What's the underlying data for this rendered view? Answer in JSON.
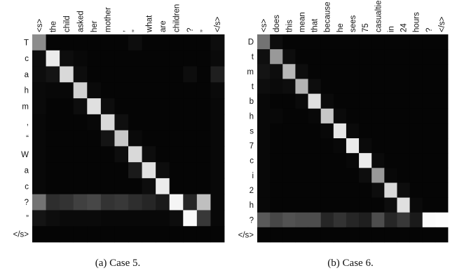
{
  "chart_data": [
    {
      "type": "heatmap",
      "caption": "(a) Case 5.",
      "x_labels": [
        "<s>",
        "the",
        "child",
        "asked",
        "her",
        "mother",
        ",",
        "”",
        "what",
        "are",
        "children",
        "?",
        "”",
        "</s>"
      ],
      "y_labels": [
        "T",
        "c",
        "a",
        "h",
        "m",
        ",",
        "“",
        "W",
        "a",
        "c",
        "?",
        "”",
        "</s>"
      ],
      "value_range": [
        0,
        1
      ],
      "values": [
        [
          0.55,
          0.02,
          0.02,
          0.02,
          0.02,
          0.02,
          0.02,
          0.05,
          0.02,
          0.02,
          0.02,
          0.02,
          0.02,
          0.05
        ],
        [
          0.05,
          0.92,
          0.05,
          0.03,
          0.02,
          0.02,
          0.02,
          0.02,
          0.02,
          0.02,
          0.02,
          0.02,
          0.02,
          0.04
        ],
        [
          0.05,
          0.08,
          0.85,
          0.05,
          0.02,
          0.02,
          0.02,
          0.02,
          0.02,
          0.02,
          0.02,
          0.05,
          0.02,
          0.12
        ],
        [
          0.04,
          0.03,
          0.03,
          0.82,
          0.04,
          0.02,
          0.02,
          0.02,
          0.02,
          0.02,
          0.02,
          0.02,
          0.02,
          0.04
        ],
        [
          0.04,
          0.02,
          0.02,
          0.05,
          0.88,
          0.05,
          0.02,
          0.02,
          0.02,
          0.02,
          0.02,
          0.02,
          0.02,
          0.03
        ],
        [
          0.03,
          0.02,
          0.02,
          0.02,
          0.03,
          0.85,
          0.06,
          0.02,
          0.02,
          0.02,
          0.02,
          0.02,
          0.02,
          0.03
        ],
        [
          0.03,
          0.02,
          0.02,
          0.02,
          0.02,
          0.08,
          0.78,
          0.04,
          0.02,
          0.02,
          0.02,
          0.02,
          0.02,
          0.03
        ],
        [
          0.03,
          0.02,
          0.02,
          0.02,
          0.02,
          0.02,
          0.05,
          0.85,
          0.05,
          0.02,
          0.02,
          0.02,
          0.02,
          0.03
        ],
        [
          0.03,
          0.02,
          0.02,
          0.02,
          0.02,
          0.02,
          0.02,
          0.1,
          0.88,
          0.05,
          0.02,
          0.02,
          0.02,
          0.03
        ],
        [
          0.03,
          0.02,
          0.02,
          0.02,
          0.02,
          0.02,
          0.02,
          0.02,
          0.05,
          0.92,
          0.02,
          0.02,
          0.02,
          0.03
        ],
        [
          0.45,
          0.18,
          0.2,
          0.25,
          0.28,
          0.2,
          0.22,
          0.18,
          0.15,
          0.1,
          0.96,
          0.15,
          0.75,
          0.03
        ],
        [
          0.08,
          0.05,
          0.04,
          0.04,
          0.04,
          0.03,
          0.03,
          0.03,
          0.03,
          0.03,
          0.05,
          0.98,
          0.22,
          0.03
        ],
        [
          0.02,
          0.02,
          0.02,
          0.02,
          0.02,
          0.02,
          0.02,
          0.02,
          0.02,
          0.02,
          0.02,
          0.02,
          0.02,
          0.02
        ]
      ]
    },
    {
      "type": "heatmap",
      "caption": "(b) Case 6.",
      "x_labels": [
        "<s>",
        "does",
        "this",
        "mean",
        "that",
        "because",
        "he",
        "sees",
        "75",
        "casualties",
        "in",
        "24",
        "hours",
        "?",
        "</s>"
      ],
      "y_labels": [
        "D",
        "t",
        "m",
        "t",
        "b",
        "h",
        "s",
        "7",
        "c",
        "i",
        "2",
        "h",
        "?",
        "</s>"
      ],
      "value_range": [
        0,
        1
      ],
      "values": [
        [
          0.45,
          0.05,
          0.02,
          0.02,
          0.02,
          0.02,
          0.02,
          0.02,
          0.02,
          0.02,
          0.02,
          0.02,
          0.02,
          0.02,
          0.02
        ],
        [
          0.06,
          0.6,
          0.05,
          0.02,
          0.02,
          0.02,
          0.02,
          0.02,
          0.02,
          0.02,
          0.02,
          0.02,
          0.02,
          0.02,
          0.02
        ],
        [
          0.08,
          0.05,
          0.72,
          0.05,
          0.02,
          0.02,
          0.02,
          0.02,
          0.02,
          0.02,
          0.02,
          0.02,
          0.02,
          0.02,
          0.02
        ],
        [
          0.05,
          0.04,
          0.05,
          0.7,
          0.05,
          0.02,
          0.02,
          0.02,
          0.02,
          0.02,
          0.02,
          0.02,
          0.02,
          0.02,
          0.02
        ],
        [
          0.03,
          0.02,
          0.02,
          0.04,
          0.88,
          0.04,
          0.02,
          0.02,
          0.02,
          0.02,
          0.02,
          0.02,
          0.02,
          0.02,
          0.02
        ],
        [
          0.03,
          0.03,
          0.02,
          0.02,
          0.03,
          0.78,
          0.04,
          0.02,
          0.02,
          0.02,
          0.02,
          0.02,
          0.02,
          0.02,
          0.02
        ],
        [
          0.03,
          0.02,
          0.02,
          0.02,
          0.02,
          0.03,
          0.9,
          0.04,
          0.02,
          0.02,
          0.02,
          0.02,
          0.02,
          0.02,
          0.02
        ],
        [
          0.03,
          0.02,
          0.02,
          0.02,
          0.02,
          0.02,
          0.03,
          0.92,
          0.04,
          0.02,
          0.02,
          0.02,
          0.02,
          0.02,
          0.02
        ],
        [
          0.03,
          0.02,
          0.02,
          0.02,
          0.02,
          0.02,
          0.02,
          0.03,
          0.92,
          0.04,
          0.02,
          0.02,
          0.02,
          0.02,
          0.02
        ],
        [
          0.03,
          0.02,
          0.02,
          0.02,
          0.02,
          0.02,
          0.02,
          0.02,
          0.05,
          0.6,
          0.03,
          0.02,
          0.02,
          0.02,
          0.02
        ],
        [
          0.03,
          0.02,
          0.02,
          0.02,
          0.02,
          0.02,
          0.02,
          0.02,
          0.02,
          0.05,
          0.85,
          0.05,
          0.02,
          0.02,
          0.02
        ],
        [
          0.03,
          0.02,
          0.02,
          0.02,
          0.02,
          0.02,
          0.02,
          0.02,
          0.02,
          0.02,
          0.05,
          0.88,
          0.04,
          0.02,
          0.02
        ],
        [
          0.35,
          0.28,
          0.32,
          0.3,
          0.3,
          0.15,
          0.2,
          0.15,
          0.12,
          0.3,
          0.15,
          0.22,
          0.1,
          0.98,
          0.99
        ],
        [
          0.02,
          0.02,
          0.02,
          0.02,
          0.02,
          0.02,
          0.02,
          0.02,
          0.02,
          0.02,
          0.02,
          0.02,
          0.02,
          0.02,
          0.02
        ]
      ]
    }
  ]
}
